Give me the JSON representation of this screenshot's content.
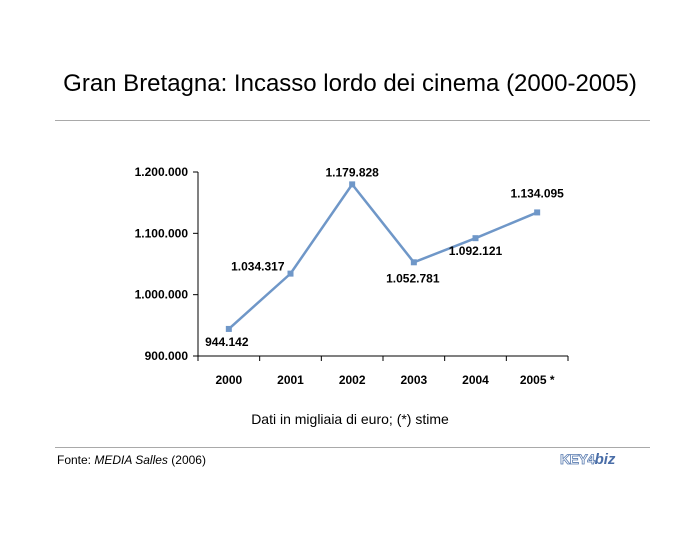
{
  "title": "Gran Bretagna: Incasso lordo dei cinema (2000-2005)",
  "note": "Dati in migliaia di euro; (*) stime",
  "source": {
    "prefix": "Fonte: ",
    "name": "MEDIA Salles",
    "year": " (2006)"
  },
  "logo": {
    "left": "KEY4",
    "right": "biz"
  },
  "colors": {
    "line": "#6f97c8",
    "marker": "#6f97c8",
    "rule": "#a9a9a9"
  },
  "chart_data": {
    "type": "line",
    "title": "Gran Bretagna: Incasso lordo dei cinema (2000-2005)",
    "categories": [
      "2000",
      "2001",
      "2002",
      "2003",
      "2004",
      "2005"
    ],
    "category_labels": [
      "2000",
      "2001",
      "2002",
      "2003",
      "2004",
      "2005 *"
    ],
    "values": [
      944142,
      1034317,
      1179828,
      1052781,
      1092121,
      1134095
    ],
    "value_labels": [
      "944.142",
      "1.034.317",
      "1.179.828",
      "1.052.781",
      "1.092.121",
      "1.134.095"
    ],
    "y_ticks": [
      900000,
      1000000,
      1100000,
      1200000
    ],
    "y_tick_labels": [
      "900.000",
      "1.000.000",
      "1.100.000",
      "1.200.000"
    ],
    "ylim": [
      900000,
      1200000
    ],
    "grid": false,
    "legend": "none"
  }
}
